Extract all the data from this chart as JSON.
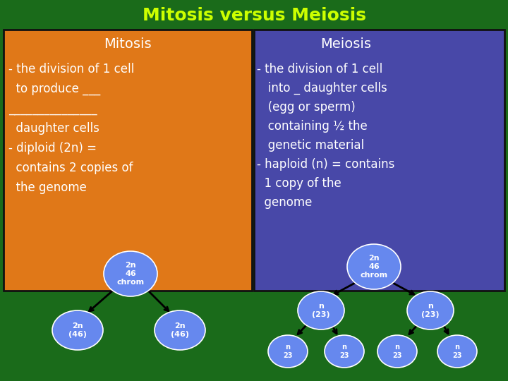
{
  "title": "Mitosis versus Meiosis",
  "title_color": "#CCFF00",
  "bg_color": "#1A6B1A",
  "mitosis_box_color": "#E07818",
  "meiosis_box_color": "#4848A8",
  "text_color": "#FFFFFF",
  "cell_color": "#6688EE",
  "mitosis_title": "Mitosis",
  "meiosis_title": "Meiosis",
  "fig_w": 7.2,
  "fig_h": 5.4,
  "dpi": 100
}
